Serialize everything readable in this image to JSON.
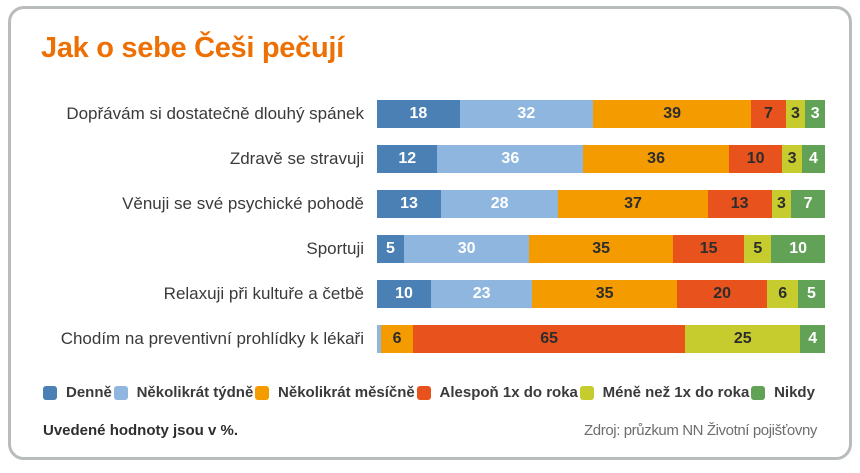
{
  "card": {
    "title": "Jak o sebe Češi pečují",
    "note": "Uvedené hodnoty jsou v %.",
    "source": "Zdroj: průzkum NN Životní pojišťovny"
  },
  "colors": {
    "title_accent": "#ed7004",
    "card_border": "#b9bcbd",
    "category_label_text": "#3a3a3a"
  },
  "chart_data": {
    "type": "bar",
    "variant": "horizontal-stacked-100pct",
    "unit": "%",
    "title": "Jak o sebe Češi pečují",
    "legend_position": "bottom",
    "grid": false,
    "value_label_min_show": 2,
    "categories": [
      "Dopřávám si dostatečně dlouhý spánek",
      "Zdravě se stravuji",
      "Věnuji se své psychické pohodě",
      "Sportuji",
      "Relaxuji při kultuře a četbě",
      "Chodím na preventivní prohlídky k lékaři"
    ],
    "series": [
      {
        "name": "Denně",
        "color": "#4a80b4",
        "value_text_color": "#ffffff",
        "values": [
          18,
          12,
          13,
          5,
          10,
          0
        ]
      },
      {
        "name": "Několikrát týdně",
        "color": "#8fb6de",
        "value_text_color": "#ffffff",
        "values": [
          32,
          36,
          28,
          30,
          23,
          1
        ]
      },
      {
        "name": "Několikrát měsíčně",
        "color": "#f49b00",
        "value_text_color": "#2d2d2d",
        "values": [
          39,
          36,
          37,
          35,
          35,
          6
        ]
      },
      {
        "name": "Alespoň 1x do roka",
        "color": "#e8521c",
        "value_text_color": "#2d2d2d",
        "values": [
          7,
          10,
          13,
          15,
          20,
          65
        ]
      },
      {
        "name": "Méně než 1x do roka",
        "color": "#c6cc2e",
        "value_text_color": "#2d2d2d",
        "values": [
          3,
          3,
          3,
          5,
          6,
          25
        ]
      },
      {
        "name": "Nikdy",
        "color": "#61a257",
        "value_text_color": "#ffffff",
        "values": [
          3,
          4,
          7,
          10,
          5,
          4
        ]
      }
    ]
  }
}
